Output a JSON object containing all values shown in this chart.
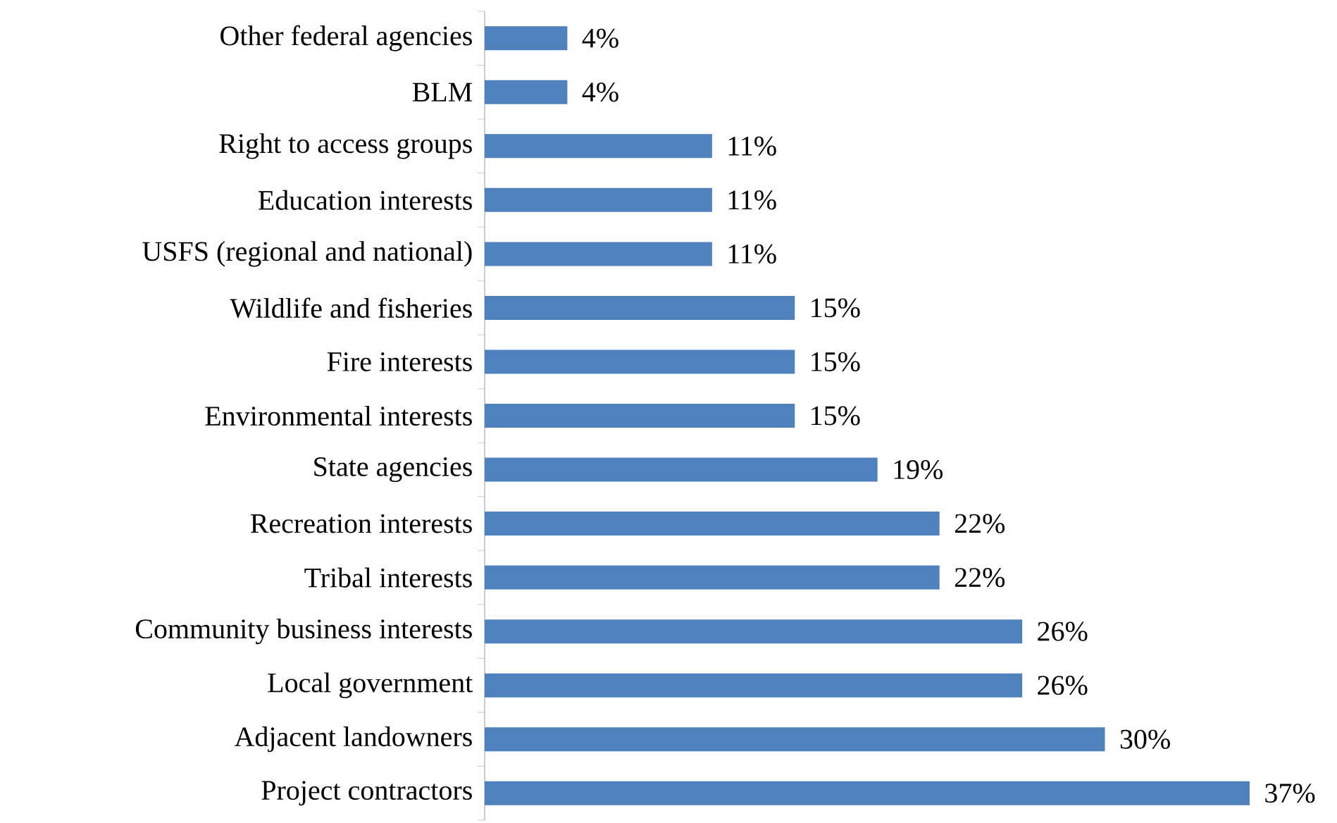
{
  "chart_data": {
    "type": "bar",
    "orientation": "horizontal",
    "categories": [
      "Other federal agencies",
      "BLM",
      "Right to access groups",
      "Education interests",
      "USFS (regional and national)",
      "Wildlife and fisheries",
      "Fire interests",
      "Environmental interests",
      "State agencies",
      "Recreation interests",
      "Tribal interests",
      "Community business interests",
      "Local government",
      "Adjacent landowners",
      "Project contractors"
    ],
    "values": [
      4,
      4,
      11,
      11,
      11,
      15,
      15,
      15,
      19,
      22,
      22,
      26,
      26,
      30,
      37
    ],
    "value_labels": [
      "4%",
      "4%",
      "11%",
      "11%",
      "11%",
      "15%",
      "15%",
      "15%",
      "19%",
      "22%",
      "22%",
      "26%",
      "26%",
      "30%",
      "37%"
    ],
    "color": "#4f81bd"
  }
}
